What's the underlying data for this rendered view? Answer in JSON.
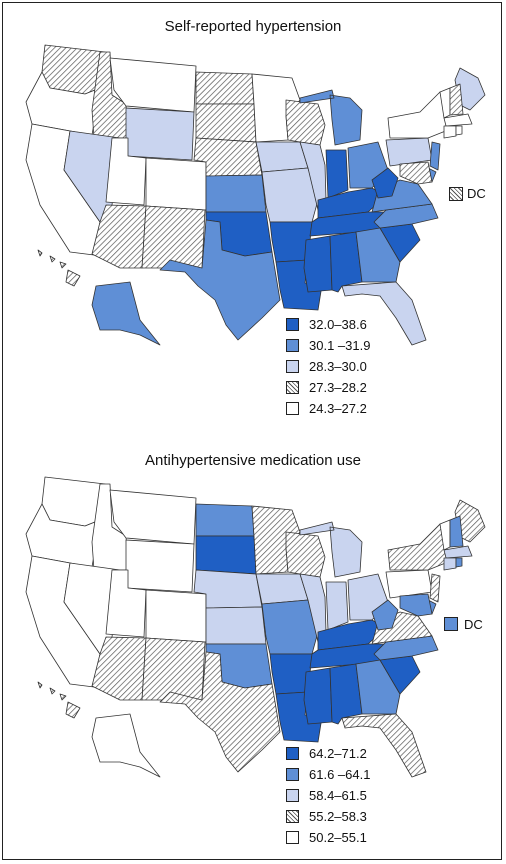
{
  "colors": {
    "dark": "#1f5fc4",
    "medium": "#5f8fd6",
    "light": "#c9d4ef",
    "hatch": "#d9d9d9",
    "white": "#ffffff",
    "stroke": "#333333"
  },
  "maps": [
    {
      "title": "Self-reported hypertension",
      "dc_label": "DC",
      "dc_class": "hatch",
      "legend": [
        {
          "class": "dark",
          "label": "32.0–38.6"
        },
        {
          "class": "medium",
          "label": "30.1 –31.9"
        },
        {
          "class": "light",
          "label": "28.3–30.0"
        },
        {
          "class": "hatch",
          "label": "27.3–28.2"
        },
        {
          "class": "white",
          "label": "24.3–27.2"
        }
      ],
      "states": {
        "WA": "hatch",
        "OR": "white",
        "CA": "white",
        "ID": "hatch",
        "NV": "light",
        "MT": "white",
        "WY": "light",
        "UT": "white",
        "AZ": "hatch",
        "CO": "white",
        "NM": "hatch",
        "ND": "hatch",
        "SD": "hatch",
        "NE": "hatch",
        "KS": "medium",
        "OK": "dark",
        "TX": "medium",
        "MN": "white",
        "IA": "light",
        "MO": "light",
        "AR": "dark",
        "LA": "dark",
        "WI": "hatch",
        "IL": "light",
        "MI": "medium",
        "IN": "dark",
        "OH": "medium",
        "KY": "dark",
        "TN": "dark",
        "MS": "dark",
        "AL": "dark",
        "GA": "medium",
        "FL": "light",
        "SC": "dark",
        "NC": "medium",
        "VA": "medium",
        "WV": "dark",
        "PA": "light",
        "NY": "white",
        "ME": "light",
        "VT": "white",
        "NH": "hatch",
        "MA": "white",
        "CT": "white",
        "RI": "white",
        "NJ": "medium",
        "DE": "medium",
        "MD": "hatch",
        "AK": "medium",
        "HI": "hatch"
      }
    },
    {
      "title": "Antihypertensive medication use",
      "dc_label": "DC",
      "dc_class": "medium",
      "legend": [
        {
          "class": "dark",
          "label": "64.2–71.2"
        },
        {
          "class": "medium",
          "label": "61.6 –64.1"
        },
        {
          "class": "light",
          "label": "58.4–61.5"
        },
        {
          "class": "hatch",
          "label": "55.2–58.3"
        },
        {
          "class": "white",
          "label": "50.2–55.1"
        }
      ],
      "states": {
        "WA": "white",
        "OR": "white",
        "CA": "white",
        "ID": "white",
        "NV": "white",
        "MT": "white",
        "WY": "white",
        "UT": "white",
        "AZ": "hatch",
        "CO": "white",
        "NM": "hatch",
        "ND": "medium",
        "SD": "dark",
        "NE": "light",
        "KS": "light",
        "OK": "medium",
        "TX": "hatch",
        "MN": "hatch",
        "IA": "light",
        "MO": "medium",
        "AR": "dark",
        "LA": "dark",
        "WI": "hatch",
        "IL": "light",
        "MI": "light",
        "IN": "light",
        "OH": "light",
        "KY": "dark",
        "TN": "dark",
        "MS": "dark",
        "AL": "dark",
        "GA": "medium",
        "FL": "hatch",
        "SC": "dark",
        "NC": "medium",
        "VA": "hatch",
        "WV": "medium",
        "PA": "white",
        "NY": "hatch",
        "ME": "hatch",
        "VT": "white",
        "NH": "medium",
        "MA": "light",
        "CT": "light",
        "RI": "medium",
        "NJ": "hatch",
        "DE": "medium",
        "MD": "medium",
        "AK": "white",
        "HI": "hatch"
      }
    }
  ]
}
